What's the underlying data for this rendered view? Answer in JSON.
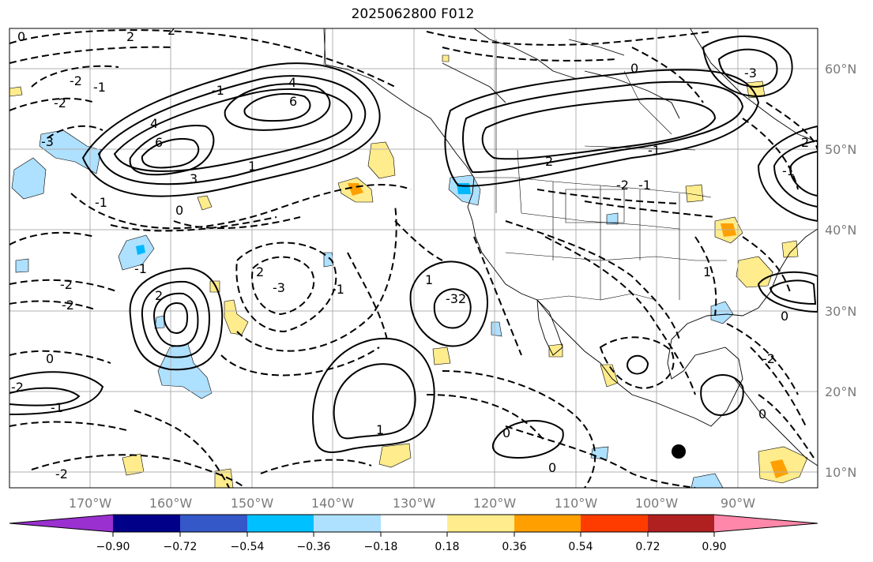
{
  "title": "2025062800 F012",
  "map": {
    "lon_labels": [
      "170°W",
      "160°W",
      "150°W",
      "140°W",
      "130°W",
      "120°W",
      "110°W",
      "100°W",
      "90°W"
    ],
    "lat_labels": [
      "60°N",
      "50°N",
      "40°N",
      "30°N",
      "20°N",
      "10°N"
    ],
    "contour_labels": [
      "0",
      "-2",
      "2",
      "-1",
      "-2",
      "4",
      "6",
      "2",
      "-3",
      "3",
      "-1",
      "4",
      "6",
      "1",
      "0",
      "-1",
      "-2",
      "2",
      "-1",
      "2",
      "-3",
      "-2",
      "-1",
      "0",
      "2",
      "1",
      "-2",
      "-1",
      "-2",
      "-3",
      "1",
      "0",
      "-3",
      "0",
      "0",
      "-1",
      "-2",
      "2",
      "-1",
      "1",
      "2",
      "-2",
      "0",
      "-1",
      "0"
    ],
    "colors": {
      "positive_fill": "#ffec8c",
      "strong_positive_fill": "#ffa000",
      "negative_fill": "#aee0ff",
      "strong_negative_fill": "#00b8ff",
      "marker": "#000000"
    }
  },
  "colorbar": {
    "ticks": [
      "−0.90",
      "−0.72",
      "−0.54",
      "−0.36",
      "−0.18",
      "0.18",
      "0.36",
      "0.54",
      "0.72",
      "0.90"
    ],
    "colors": [
      "#9a30d0",
      "#000088",
      "#3458c8",
      "#00c0ff",
      "#aee0ff",
      "#ffffff",
      "#ffec8c",
      "#ffa000",
      "#ff3c00",
      "#b02020",
      "#ff88aa"
    ]
  }
}
